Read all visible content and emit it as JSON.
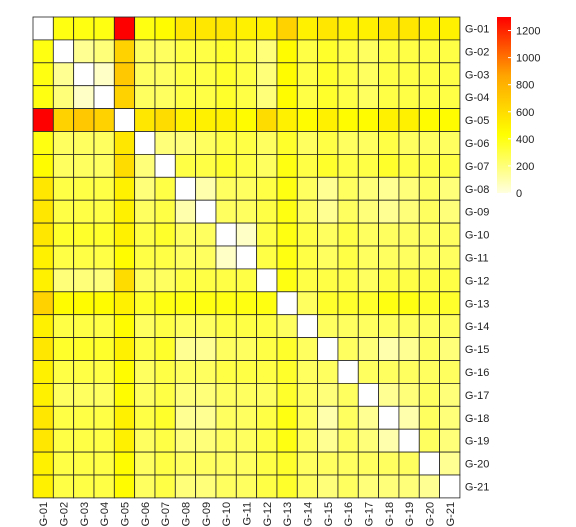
{
  "chart_data": {
    "type": "heatmap",
    "title": "",
    "xlabel": "",
    "ylabel": "",
    "rows": [
      "G-01",
      "G-02",
      "G-03",
      "G-04",
      "G-05",
      "G-06",
      "G-07",
      "G-08",
      "G-09",
      "G-10",
      "G-11",
      "G-12",
      "G-13",
      "G-14",
      "G-15",
      "G-16",
      "G-17",
      "G-18",
      "G-19",
      "G-20",
      "G-21"
    ],
    "cols": [
      "G-01",
      "G-02",
      "G-03",
      "G-04",
      "G-05",
      "G-06",
      "G-07",
      "G-08",
      "G-09",
      "G-10",
      "G-11",
      "G-12",
      "G-13",
      "G-14",
      "G-15",
      "G-16",
      "G-17",
      "G-18",
      "G-19",
      "G-20",
      "G-21"
    ],
    "values": [
      [
        0,
        400,
        400,
        400,
        1300,
        400,
        450,
        550,
        550,
        550,
        500,
        500,
        650,
        500,
        550,
        500,
        500,
        550,
        550,
        500,
        500
      ],
      [
        400,
        0,
        150,
        200,
        650,
        250,
        250,
        300,
        300,
        350,
        300,
        200,
        450,
        300,
        350,
        300,
        250,
        300,
        300,
        300,
        300
      ],
      [
        400,
        150,
        0,
        50,
        700,
        250,
        250,
        300,
        300,
        350,
        300,
        200,
        450,
        300,
        350,
        300,
        250,
        300,
        300,
        300,
        300
      ],
      [
        400,
        200,
        50,
        0,
        650,
        250,
        250,
        300,
        300,
        350,
        300,
        200,
        450,
        300,
        350,
        300,
        250,
        300,
        300,
        300,
        300
      ],
      [
        1300,
        650,
        700,
        650,
        0,
        550,
        600,
        500,
        500,
        500,
        450,
        600,
        500,
        450,
        500,
        450,
        450,
        500,
        500,
        450,
        450
      ],
      [
        400,
        250,
        250,
        250,
        550,
        0,
        200,
        200,
        250,
        300,
        300,
        250,
        350,
        250,
        300,
        250,
        250,
        300,
        250,
        250,
        250
      ],
      [
        450,
        250,
        250,
        250,
        600,
        200,
        0,
        300,
        300,
        350,
        300,
        250,
        400,
        300,
        350,
        300,
        300,
        350,
        300,
        300,
        300
      ],
      [
        550,
        300,
        300,
        300,
        500,
        200,
        300,
        0,
        100,
        250,
        250,
        300,
        400,
        250,
        150,
        250,
        200,
        150,
        200,
        250,
        200
      ],
      [
        550,
        300,
        300,
        300,
        500,
        250,
        300,
        100,
        0,
        250,
        250,
        300,
        400,
        250,
        150,
        250,
        200,
        150,
        200,
        250,
        200
      ],
      [
        550,
        350,
        350,
        350,
        500,
        300,
        350,
        250,
        250,
        0,
        50,
        300,
        400,
        300,
        250,
        300,
        250,
        250,
        250,
        250,
        250
      ],
      [
        500,
        300,
        300,
        300,
        450,
        300,
        300,
        250,
        250,
        50,
        0,
        300,
        400,
        300,
        250,
        300,
        250,
        250,
        250,
        250,
        250
      ],
      [
        500,
        200,
        200,
        200,
        600,
        250,
        250,
        300,
        300,
        300,
        300,
        0,
        400,
        300,
        300,
        300,
        250,
        300,
        300,
        300,
        300
      ],
      [
        650,
        450,
        450,
        450,
        500,
        350,
        400,
        400,
        400,
        400,
        400,
        400,
        0,
        250,
        350,
        350,
        350,
        400,
        400,
        350,
        350
      ],
      [
        500,
        300,
        300,
        300,
        450,
        250,
        300,
        250,
        250,
        300,
        300,
        300,
        250,
        0,
        250,
        250,
        250,
        250,
        250,
        250,
        250
      ],
      [
        550,
        350,
        350,
        350,
        500,
        300,
        350,
        150,
        150,
        250,
        250,
        300,
        350,
        250,
        0,
        250,
        200,
        100,
        150,
        250,
        200
      ],
      [
        500,
        300,
        300,
        300,
        450,
        250,
        300,
        250,
        250,
        300,
        300,
        300,
        350,
        250,
        250,
        0,
        250,
        250,
        250,
        250,
        250
      ],
      [
        500,
        250,
        250,
        250,
        450,
        250,
        300,
        200,
        200,
        250,
        250,
        250,
        350,
        250,
        200,
        250,
        0,
        150,
        200,
        250,
        200
      ],
      [
        550,
        300,
        300,
        300,
        500,
        300,
        350,
        150,
        150,
        250,
        250,
        300,
        400,
        250,
        100,
        250,
        150,
        0,
        100,
        250,
        200
      ],
      [
        550,
        300,
        300,
        300,
        500,
        250,
        300,
        200,
        200,
        250,
        250,
        300,
        400,
        250,
        150,
        250,
        200,
        100,
        0,
        250,
        200
      ],
      [
        500,
        300,
        300,
        300,
        450,
        250,
        300,
        250,
        250,
        250,
        250,
        300,
        350,
        250,
        250,
        250,
        250,
        250,
        250,
        0,
        150
      ],
      [
        500,
        300,
        300,
        300,
        450,
        250,
        300,
        200,
        200,
        250,
        250,
        300,
        350,
        250,
        200,
        250,
        200,
        200,
        200,
        150,
        0
      ]
    ],
    "colorbar": {
      "ticks": [
        0,
        200,
        400,
        600,
        800,
        1000,
        1200
      ],
      "range": [
        0,
        1300
      ],
      "colors": [
        "#ffffe0",
        "#ffff00",
        "#ffa500",
        "#ff0000"
      ]
    },
    "grid": true
  }
}
